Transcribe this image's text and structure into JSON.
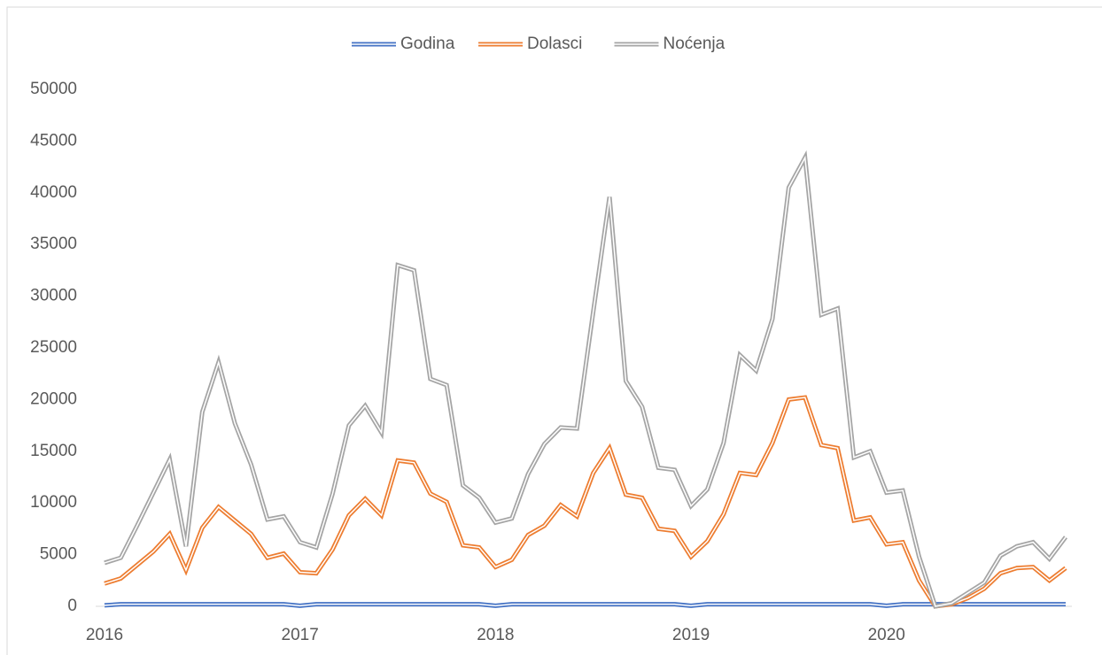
{
  "chart_data": {
    "type": "line",
    "categories": [
      "2016",
      null,
      null,
      null,
      null,
      null,
      null,
      null,
      null,
      null,
      null,
      null,
      "2017",
      null,
      null,
      null,
      null,
      null,
      null,
      null,
      null,
      null,
      null,
      null,
      "2018",
      null,
      null,
      null,
      null,
      null,
      null,
      null,
      null,
      null,
      null,
      null,
      "2019",
      null,
      null,
      null,
      null,
      null,
      null,
      null,
      null,
      null,
      null,
      null,
      "2020",
      null,
      null,
      null,
      null,
      null,
      null,
      null,
      null,
      null,
      null,
      null
    ],
    "series": [
      {
        "name": "Godina",
        "color": "#4472c4",
        "values": [
          100,
          200,
          200,
          200,
          200,
          200,
          200,
          200,
          200,
          200,
          200,
          200,
          50,
          200,
          200,
          200,
          200,
          200,
          200,
          200,
          200,
          200,
          200,
          200,
          50,
          200,
          200,
          200,
          200,
          200,
          200,
          200,
          200,
          200,
          200,
          200,
          50,
          200,
          200,
          200,
          200,
          200,
          200,
          200,
          200,
          200,
          200,
          200,
          50,
          200,
          200,
          200,
          200,
          200,
          200,
          200,
          200,
          200,
          200,
          200
        ]
      },
      {
        "name": "Dolasci",
        "color": "#ed7d31",
        "values": [
          2200,
          2700,
          4000,
          5300,
          7000,
          3500,
          7600,
          9600,
          8300,
          7000,
          4700,
          5100,
          3300,
          3200,
          5500,
          8800,
          10400,
          8800,
          14100,
          13900,
          10900,
          10100,
          5900,
          5700,
          3800,
          4500,
          6900,
          7800,
          9800,
          8700,
          12900,
          15300,
          10800,
          10500,
          7500,
          7300,
          4800,
          6300,
          8900,
          12900,
          12700,
          15800,
          20000,
          20200,
          15600,
          15300,
          8300,
          8600,
          6000,
          6200,
          2500,
          0,
          200,
          800,
          1700,
          3200,
          3700,
          3800,
          2500,
          3700
        ]
      },
      {
        "name": "Noćenja",
        "color": "#a5a5a5",
        "values": [
          4200,
          4700,
          7800,
          11000,
          14200,
          5800,
          18800,
          23600,
          17700,
          13700,
          8400,
          8700,
          6200,
          5700,
          10900,
          17500,
          19400,
          16800,
          33000,
          32500,
          22000,
          21400,
          11700,
          10500,
          8100,
          8500,
          12800,
          15700,
          17300,
          17200,
          28500,
          39600,
          21800,
          19300,
          13400,
          13200,
          9700,
          11300,
          15800,
          24300,
          22800,
          27800,
          40500,
          43400,
          28200,
          28800,
          14400,
          15000,
          11000,
          11200,
          4800,
          0,
          300,
          1300,
          2300,
          4900,
          5800,
          6200,
          4600,
          6700
        ]
      }
    ],
    "ylim": [
      0,
      50000
    ],
    "yticks": [
      0,
      5000,
      10000,
      15000,
      20000,
      25000,
      30000,
      35000,
      40000,
      45000,
      50000
    ],
    "legend": "top",
    "grid": false
  }
}
